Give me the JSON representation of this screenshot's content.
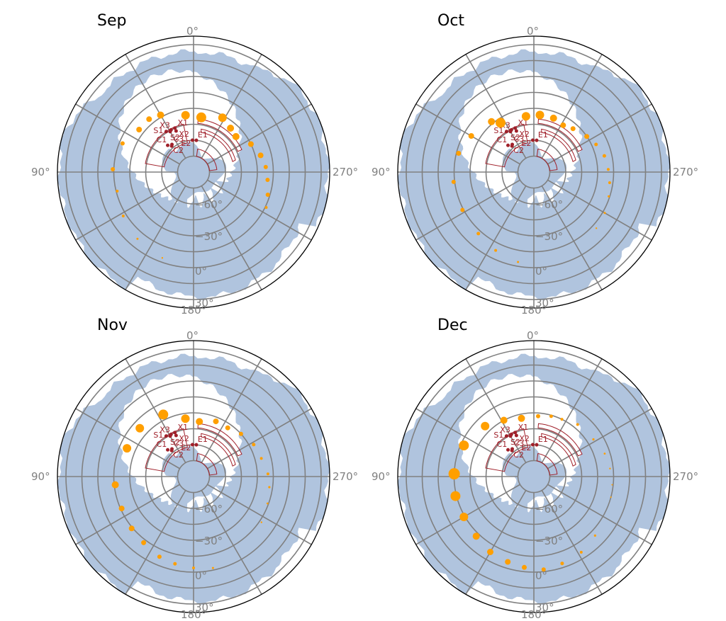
{
  "figure": {
    "panels": [
      {
        "title": "Sep"
      },
      {
        "title": "Oct"
      },
      {
        "title": "Nov"
      },
      {
        "title": "Dec"
      }
    ],
    "lon_tick_labels": {
      "top": "0°",
      "left": "90°",
      "right": "270°",
      "bottom": "180°"
    },
    "lat_tick_labels": [
      "−60°",
      "−30°",
      "0°",
      "30°"
    ],
    "site_labels": [
      "X3",
      "X1",
      "X2",
      "S1",
      "S2",
      "C1",
      "C3",
      "C2",
      "E1",
      "E2"
    ]
  },
  "chart_data": {
    "type": "scatter",
    "projection": "south polar azimuthal, longitude increasing counter-clockwise from top",
    "grid": true,
    "meridian_spacing_deg": 30,
    "latitude_circles_deg": [
      -75,
      -60,
      -45,
      -30,
      -15,
      0,
      15,
      30
    ],
    "colors": {
      "sky_coverage": "#b0c4de",
      "markers": "#ff9f00",
      "footprints": "#a0202a",
      "grid": "#808080"
    },
    "panels": [
      {
        "title": "Sep",
        "points": [
          {
            "lon": 8,
            "lat": -36,
            "size": 6
          },
          {
            "lon": 352,
            "lat": -38,
            "size": 7
          },
          {
            "lon": 332,
            "lat": -32,
            "size": 6
          },
          {
            "lon": 320,
            "lat": -36,
            "size": 5
          },
          {
            "lon": 310,
            "lat": -38,
            "size": 5
          },
          {
            "lon": 296,
            "lat": -30,
            "size": 4
          },
          {
            "lon": 284,
            "lat": -25,
            "size": 4
          },
          {
            "lon": 274,
            "lat": -22,
            "size": 3
          },
          {
            "lon": 264,
            "lat": -20,
            "size": 3
          },
          {
            "lon": 253,
            "lat": -17,
            "size": 3
          },
          {
            "lon": 244,
            "lat": -14,
            "size": 2
          },
          {
            "lon": 30,
            "lat": -28,
            "size": 5
          },
          {
            "lon": 40,
            "lat": -25,
            "size": 4
          },
          {
            "lon": 52,
            "lat": -25,
            "size": 4
          },
          {
            "lon": 68,
            "lat": -18,
            "size": 3
          },
          {
            "lon": 88,
            "lat": -14,
            "size": 3
          },
          {
            "lon": 104,
            "lat": -16,
            "size": 2
          },
          {
            "lon": 122,
            "lat": -12,
            "size": 2
          },
          {
            "lon": 140,
            "lat": -8,
            "size": 1.5
          },
          {
            "lon": 160,
            "lat": -4,
            "size": 1.2
          }
        ]
      },
      {
        "title": "Oct",
        "points": [
          {
            "lon": 8,
            "lat": -37,
            "size": 6
          },
          {
            "lon": 354,
            "lat": -36,
            "size": 6
          },
          {
            "lon": 340,
            "lat": -36,
            "size": 5
          },
          {
            "lon": 328,
            "lat": -38,
            "size": 4
          },
          {
            "lon": 318,
            "lat": -35,
            "size": 3.5
          },
          {
            "lon": 304,
            "lat": -30,
            "size": 3.5
          },
          {
            "lon": 294,
            "lat": -26,
            "size": 2.5
          },
          {
            "lon": 283,
            "lat": -22,
            "size": 2.5
          },
          {
            "lon": 272,
            "lat": -20,
            "size": 2
          },
          {
            "lon": 262,
            "lat": -18,
            "size": 2
          },
          {
            "lon": 252,
            "lat": -16,
            "size": 1.6
          },
          {
            "lon": 240,
            "lat": -13,
            "size": 1.5
          },
          {
            "lon": 228,
            "lat": -11,
            "size": 1.2
          },
          {
            "lon": 34,
            "lat": -34,
            "size": 7
          },
          {
            "lon": 40,
            "lat": -28,
            "size": 5
          },
          {
            "lon": 60,
            "lat": -22,
            "size": 4
          },
          {
            "lon": 76,
            "lat": -17,
            "size": 3.5
          },
          {
            "lon": 97,
            "lat": -14,
            "size": 3
          },
          {
            "lon": 118,
            "lat": -14,
            "size": 3
          },
          {
            "lon": 138,
            "lat": -12,
            "size": 2.5
          },
          {
            "lon": 154,
            "lat": -8,
            "size": 2
          },
          {
            "lon": 170,
            "lat": -4,
            "size": 1.5
          }
        ]
      },
      {
        "title": "Nov",
        "points": [
          {
            "lon": 8,
            "lat": -35,
            "size": 6
          },
          {
            "lon": 354,
            "lat": -38,
            "size": 5
          },
          {
            "lon": 338,
            "lat": -34,
            "size": 4
          },
          {
            "lon": 325,
            "lat": -34,
            "size": 3.5
          },
          {
            "lon": 312,
            "lat": -30,
            "size": 3
          },
          {
            "lon": 298,
            "lat": -26,
            "size": 2.5
          },
          {
            "lon": 285,
            "lat": -24,
            "size": 2
          },
          {
            "lon": 272,
            "lat": -20,
            "size": 2
          },
          {
            "lon": 262,
            "lat": -18,
            "size": 1.6
          },
          {
            "lon": 250,
            "lat": -16,
            "size": 1.4
          },
          {
            "lon": 236,
            "lat": -13,
            "size": 1.2
          },
          {
            "lon": 26,
            "lat": -25,
            "size": 7
          },
          {
            "lon": 48,
            "lat": -22,
            "size": 6
          },
          {
            "lon": 67,
            "lat": -22,
            "size": 6
          },
          {
            "lon": 96,
            "lat": -16,
            "size": 5
          },
          {
            "lon": 114,
            "lat": -16,
            "size": 4
          },
          {
            "lon": 130,
            "lat": -14,
            "size": 4
          },
          {
            "lon": 143,
            "lat": -12,
            "size": 3.5
          },
          {
            "lon": 157,
            "lat": -8,
            "size": 3
          },
          {
            "lon": 168,
            "lat": -6,
            "size": 2.5
          },
          {
            "lon": 180,
            "lat": -4,
            "size": 2
          },
          {
            "lon": 192,
            "lat": -2,
            "size": 1.5
          }
        ]
      },
      {
        "title": "Dec",
        "points": [
          {
            "lon": 356,
            "lat": -33,
            "size": 3
          },
          {
            "lon": 344,
            "lat": -31,
            "size": 2.5
          },
          {
            "lon": 334,
            "lat": -30,
            "size": 2
          },
          {
            "lon": 320,
            "lat": -26,
            "size": 2
          },
          {
            "lon": 302,
            "lat": -24,
            "size": 1.6
          },
          {
            "lon": 288,
            "lat": -20,
            "size": 1.4
          },
          {
            "lon": 276,
            "lat": -18,
            "size": 1.2
          },
          {
            "lon": 264,
            "lat": -16,
            "size": 1
          },
          {
            "lon": 255,
            "lat": -15,
            "size": 1
          },
          {
            "lon": 12,
            "lat": -34,
            "size": 5
          },
          {
            "lon": 28,
            "lat": -30,
            "size": 5
          },
          {
            "lon": 44,
            "lat": -24,
            "size": 6
          },
          {
            "lon": 66,
            "lat": -18,
            "size": 7
          },
          {
            "lon": 88,
            "lat": -15,
            "size": 8
          },
          {
            "lon": 104,
            "lat": -14,
            "size": 7
          },
          {
            "lon": 120,
            "lat": -14,
            "size": 6
          },
          {
            "lon": 136,
            "lat": -12,
            "size": 5
          },
          {
            "lon": 150,
            "lat": -8,
            "size": 4.5
          },
          {
            "lon": 163,
            "lat": -6,
            "size": 4
          },
          {
            "lon": 174,
            "lat": -4,
            "size": 3.5
          },
          {
            "lon": 186,
            "lat": -2,
            "size": 3
          },
          {
            "lon": 198,
            "lat": -4,
            "size": 2.5
          },
          {
            "lon": 212,
            "lat": -6,
            "size": 2
          },
          {
            "lon": 226,
            "lat": -10,
            "size": 1.6
          }
        ]
      }
    ],
    "sites": [
      {
        "label": "X3",
        "lon": 28,
        "lat": -45
      },
      {
        "label": "X1",
        "lon": 23,
        "lat": -45
      },
      {
        "label": "X2",
        "lon": 23,
        "lat": -48
      },
      {
        "label": "S1",
        "lon": 34,
        "lat": -44
      },
      {
        "label": "S2",
        "lon": 30,
        "lat": -46
      },
      {
        "label": "C1",
        "lon": 44,
        "lat": -55
      },
      {
        "label": "C3",
        "lon": 38,
        "lat": -57
      },
      {
        "label": "C2",
        "lon": 40,
        "lat": -58
      },
      {
        "label": "E1",
        "lon": 355,
        "lat": -60
      },
      {
        "label": "E2",
        "lon": 2,
        "lat": -60
      }
    ],
    "footprints": [
      {
        "name": "outer-arc",
        "lon_from": 355,
        "lon_to": 295,
        "lat_from": -44,
        "lat_to": -40
      },
      {
        "name": "mid-arc",
        "lon_from": 350,
        "lon_to": 285,
        "lat_from": -52,
        "lat_to": -49
      },
      {
        "name": "inner-arc",
        "lon_from": 350,
        "lon_to": 275,
        "lat_from": -75,
        "lat_to": -68
      },
      {
        "name": "west-region",
        "lon_from": 80,
        "lon_to": 12,
        "lat_from": -62,
        "lat_to": -44
      }
    ]
  }
}
